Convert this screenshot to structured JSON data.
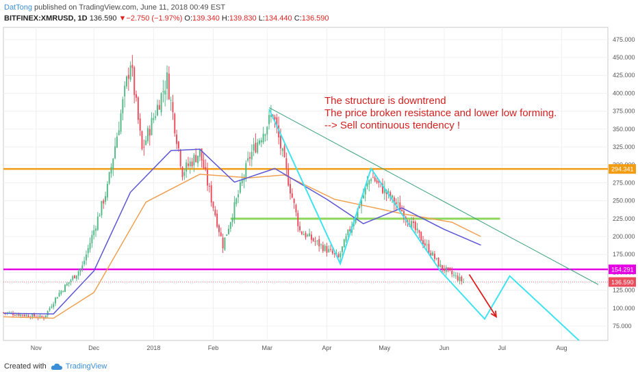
{
  "header": {
    "author": "DatTong",
    "published": " published on TradingView.com, June 11, 2018 00:49 EST",
    "symbol": "BITFINEX:XMRUSD, 1D",
    "last": "136.590",
    "change_arrow": "▼",
    "change": "−2.750 (−1.97%)",
    "open_label": "O:",
    "open": "139.340",
    "high_label": "H:",
    "high": "139.830",
    "low_label": "L:",
    "low": "134.440",
    "close_label": "C:",
    "close": "136.590"
  },
  "footer": {
    "created_with": "Created with",
    "brand": "TradingView"
  },
  "annotation": {
    "line1": "The structure is downtrend",
    "line2": "The price broken resistance and lower low forming.",
    "line3": "--> Sell continuous tendency !"
  },
  "price_labels": {
    "resistance": "294.341",
    "support": "154.291",
    "last": "136.590"
  },
  "colors": {
    "up": "#53b987",
    "down": "#eb4d5c",
    "ma_fast": "#5b56d6",
    "ma_slow": "#f0a050",
    "resistance": "#f39c12",
    "support": "#e600e6",
    "zone": "#8cd65a",
    "trendline": "#3aa37a",
    "zigzag": "#3fe3f0",
    "arrow": "#e01b1b",
    "annotation": "#d42020"
  },
  "chart_data": {
    "type": "candlestick",
    "symbol": "BITFINEX:XMRUSD",
    "timeframe": "1D",
    "x_tick_labels": [
      "Nov",
      "Dec",
      "2018",
      "Feb",
      "Mar",
      "Apr",
      "May",
      "Jun",
      "Jul",
      "Aug"
    ],
    "y_tick_labels": [
      75,
      100,
      125,
      150,
      175,
      200,
      225,
      250,
      275,
      300,
      325,
      350,
      375,
      400,
      425,
      450,
      475
    ],
    "ylim": [
      55,
      492
    ],
    "grid": true,
    "price_path": [
      {
        "date": "2017-10-15",
        "price": 94
      },
      {
        "date": "2017-11-05",
        "price": 87
      },
      {
        "date": "2017-11-12",
        "price": 118
      },
      {
        "date": "2017-11-25",
        "price": 158
      },
      {
        "date": "2017-12-08",
        "price": 268
      },
      {
        "date": "2017-12-20",
        "price": 445
      },
      {
        "date": "2017-12-26",
        "price": 320
      },
      {
        "date": "2018-01-08",
        "price": 420
      },
      {
        "date": "2018-01-16",
        "price": 290
      },
      {
        "date": "2018-01-25",
        "price": 318
      },
      {
        "date": "2018-02-06",
        "price": 188
      },
      {
        "date": "2018-02-20",
        "price": 312
      },
      {
        "date": "2018-03-04",
        "price": 372
      },
      {
        "date": "2018-03-18",
        "price": 208
      },
      {
        "date": "2018-04-07",
        "price": 170
      },
      {
        "date": "2018-04-24",
        "price": 285
      },
      {
        "date": "2018-05-10",
        "price": 236
      },
      {
        "date": "2018-05-30",
        "price": 158
      },
      {
        "date": "2018-06-11",
        "price": 136.59
      }
    ],
    "ma_fast": [
      {
        "date": "2017-10-15",
        "value": 93
      },
      {
        "date": "2017-11-10",
        "value": 92
      },
      {
        "date": "2017-12-01",
        "value": 152
      },
      {
        "date": "2017-12-20",
        "value": 262
      },
      {
        "date": "2018-01-10",
        "value": 320
      },
      {
        "date": "2018-01-25",
        "value": 322
      },
      {
        "date": "2018-02-12",
        "value": 276
      },
      {
        "date": "2018-03-05",
        "value": 295
      },
      {
        "date": "2018-04-01",
        "value": 252
      },
      {
        "date": "2018-04-20",
        "value": 218
      },
      {
        "date": "2018-05-10",
        "value": 240
      },
      {
        "date": "2018-06-01",
        "value": 210
      },
      {
        "date": "2018-06-20",
        "value": 188
      }
    ],
    "ma_slow": [
      {
        "date": "2017-10-15",
        "value": 88
      },
      {
        "date": "2017-11-10",
        "value": 86
      },
      {
        "date": "2017-12-01",
        "value": 122
      },
      {
        "date": "2017-12-28",
        "value": 248
      },
      {
        "date": "2018-01-25",
        "value": 287
      },
      {
        "date": "2018-02-20",
        "value": 282
      },
      {
        "date": "2018-03-10",
        "value": 286
      },
      {
        "date": "2018-04-05",
        "value": 252
      },
      {
        "date": "2018-05-10",
        "value": 232
      },
      {
        "date": "2018-06-05",
        "value": 220
      },
      {
        "date": "2018-06-20",
        "value": 200
      }
    ],
    "annotations": {
      "resistance_line": 294.341,
      "support_line": 154.291,
      "last_price_line": 136.59,
      "zone_line": {
        "value": 225,
        "from": "2018-02-10",
        "to": "2018-06-30"
      },
      "trendline": [
        {
          "date": "2018-03-02",
          "price": 380
        },
        {
          "date": "2018-08-20",
          "price": 133
        }
      ],
      "zigzag": [
        {
          "date": "2018-03-02",
          "price": 378
        },
        {
          "date": "2018-04-08",
          "price": 162
        },
        {
          "date": "2018-04-24",
          "price": 295
        },
        {
          "date": "2018-05-30",
          "price": 152
        },
        {
          "date": "2018-06-22",
          "price": 85
        },
        {
          "date": "2018-07-05",
          "price": 145
        },
        {
          "date": "2018-08-10",
          "price": 55
        }
      ],
      "arrow": [
        {
          "date": "2018-06-14",
          "price": 147
        },
        {
          "date": "2018-06-28",
          "price": 88
        }
      ]
    }
  }
}
